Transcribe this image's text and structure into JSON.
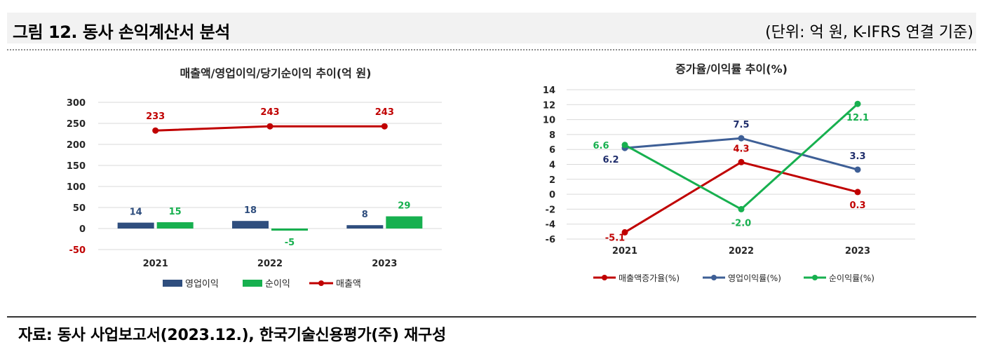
{
  "header": {
    "title": "그림 12. 동사 손익계산서 분석",
    "unit": "(단위: 억 원, K-IFRS 연결 기준)"
  },
  "source": "자료: 동사 사업보고서(2023.12.), 한국기술신용평가(주) 재구성",
  "colors": {
    "navy": "#2f4e7e",
    "green": "#17b04f",
    "red": "#c00000",
    "blue": "#3e5f96"
  },
  "chart_data": [
    {
      "type": "bar",
      "title": "매출액/영업이익/당기순이익 추이(억 원)",
      "categories": [
        "2021",
        "2022",
        "2023"
      ],
      "ylim": [
        -50,
        300
      ],
      "yticks": [
        "300",
        "250",
        "200",
        "150",
        "100",
        "50",
        "0",
        "-50"
      ],
      "grid": true,
      "legend_position": "bottom",
      "series": [
        {
          "name": "영업이익",
          "kind": "bar",
          "color": "#2f4e7e",
          "values": [
            14,
            18,
            8
          ],
          "labels": [
            "14",
            "18",
            "8"
          ]
        },
        {
          "name": "순이익",
          "kind": "bar",
          "color": "#17b04f",
          "values": [
            15,
            -5,
            29
          ],
          "labels": [
            "15",
            "-5",
            "29"
          ]
        },
        {
          "name": "매출액",
          "kind": "line",
          "color": "#c00000",
          "values": [
            233,
            243,
            243
          ],
          "labels": [
            "233",
            "243",
            "243"
          ]
        }
      ]
    },
    {
      "type": "line",
      "title": "증가율/이익률 추이(%)",
      "categories": [
        "2021",
        "2022",
        "2023"
      ],
      "ylim": [
        -6,
        14
      ],
      "yticks": [
        "14",
        "12",
        "10",
        "8",
        "6",
        "4",
        "2",
        "0",
        "-2",
        "-4",
        "-6"
      ],
      "grid": true,
      "legend_position": "bottom",
      "series": [
        {
          "name": "매출액증가율(%)",
          "color": "#c00000",
          "values": [
            -5.1,
            4.3,
            0.3
          ],
          "labels": [
            "-5.1",
            "4.3",
            "0.3"
          ]
        },
        {
          "name": "영업이익률(%)",
          "color": "#3e5f96",
          "values": [
            6.2,
            7.5,
            3.3
          ],
          "labels": [
            "6.2",
            "7.5",
            "3.3"
          ]
        },
        {
          "name": "순이익률(%)",
          "color": "#17b04f",
          "values": [
            6.6,
            -2.0,
            12.1
          ],
          "labels": [
            "6.6",
            "-2.0",
            "12.1"
          ]
        }
      ]
    }
  ]
}
